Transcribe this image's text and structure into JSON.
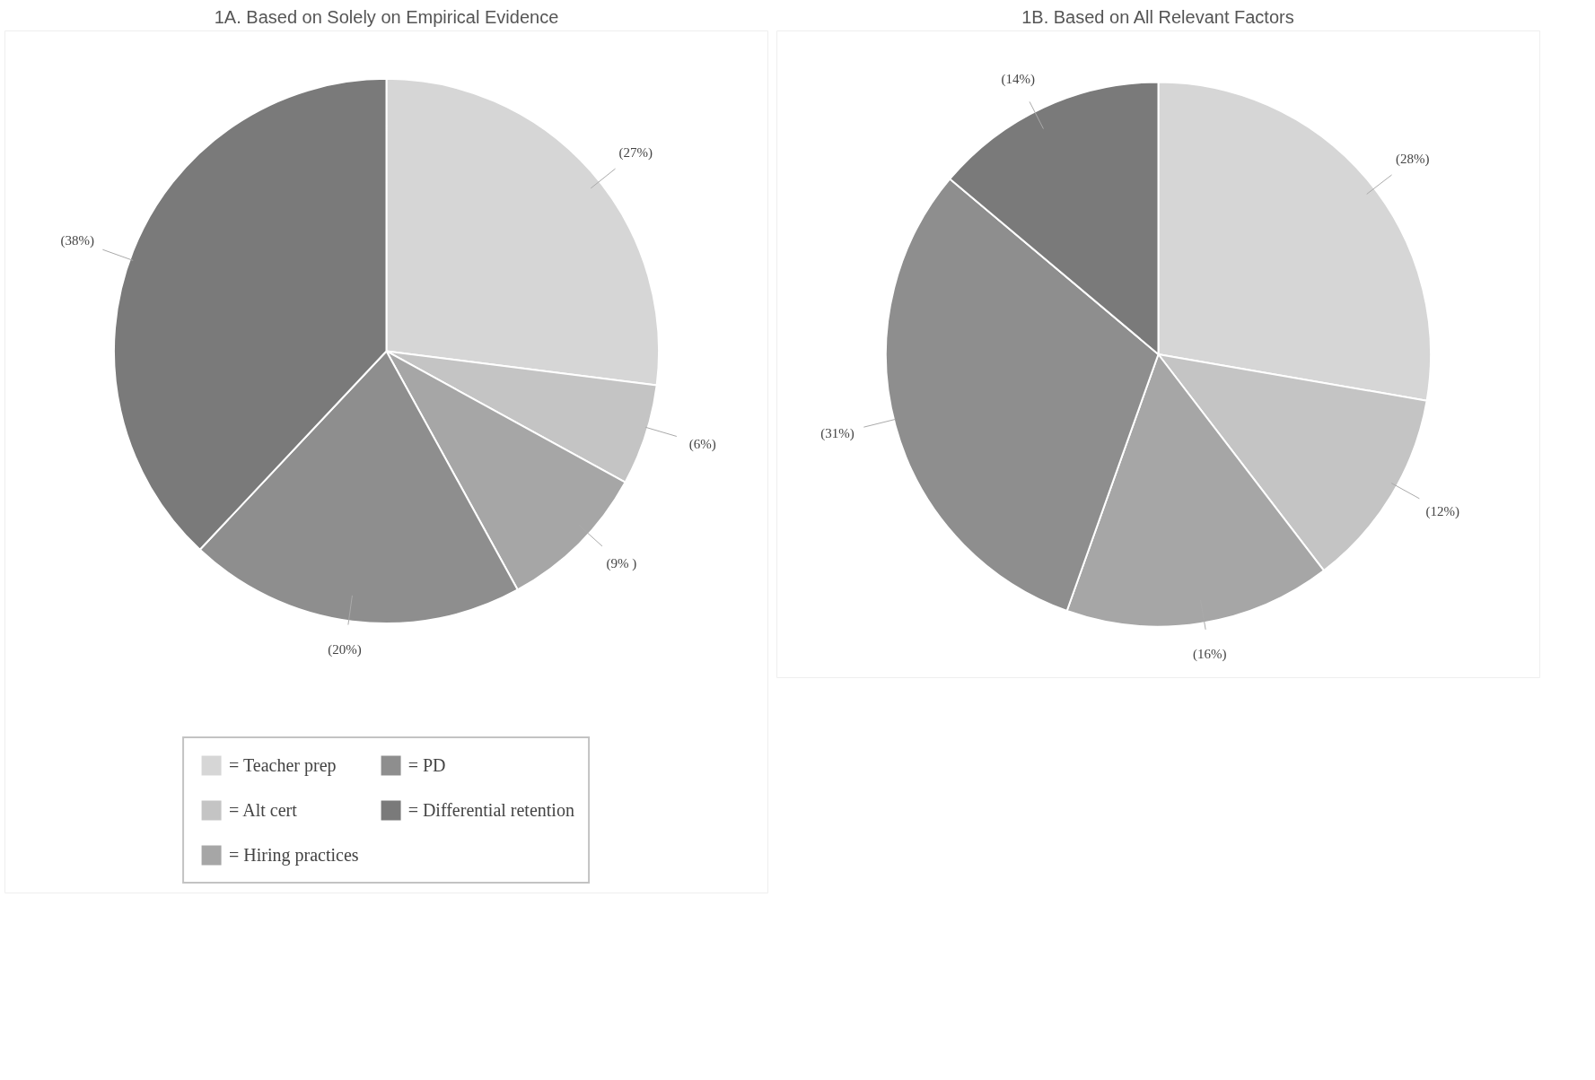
{
  "chart_data": [
    {
      "type": "pie",
      "title": "1A. Based on Solely on Empirical Evidence",
      "categories": [
        "= Teacher prep",
        "= Alt cert",
        "= Hiring practices",
        "= PD",
        "= Differential retention"
      ],
      "values": [
        27,
        6,
        9,
        20,
        38
      ],
      "colors": [
        "#d6d6d6",
        "#c4c4c4",
        "#a6a6a6",
        "#8e8e8e",
        "#7a7a7a"
      ],
      "value_labels": [
        "(27%)",
        "(6%)",
        "(9% )",
        "(20%)",
        "(38%)"
      ],
      "legend": "bottom"
    },
    {
      "type": "pie",
      "title": "1B. Based on All Relevant Factors",
      "categories": [
        null,
        null,
        null,
        null,
        null
      ],
      "values": [
        28,
        12,
        16,
        31,
        14
      ],
      "colors": [
        "#d6d6d6",
        "#c4c4c4",
        "#a6a6a6",
        "#8e8e8e",
        "#7a7a7a"
      ],
      "value_labels": [
        "(28%)",
        "(12%)",
        "(16%)",
        "(31%)",
        "(14%)"
      ]
    }
  ]
}
